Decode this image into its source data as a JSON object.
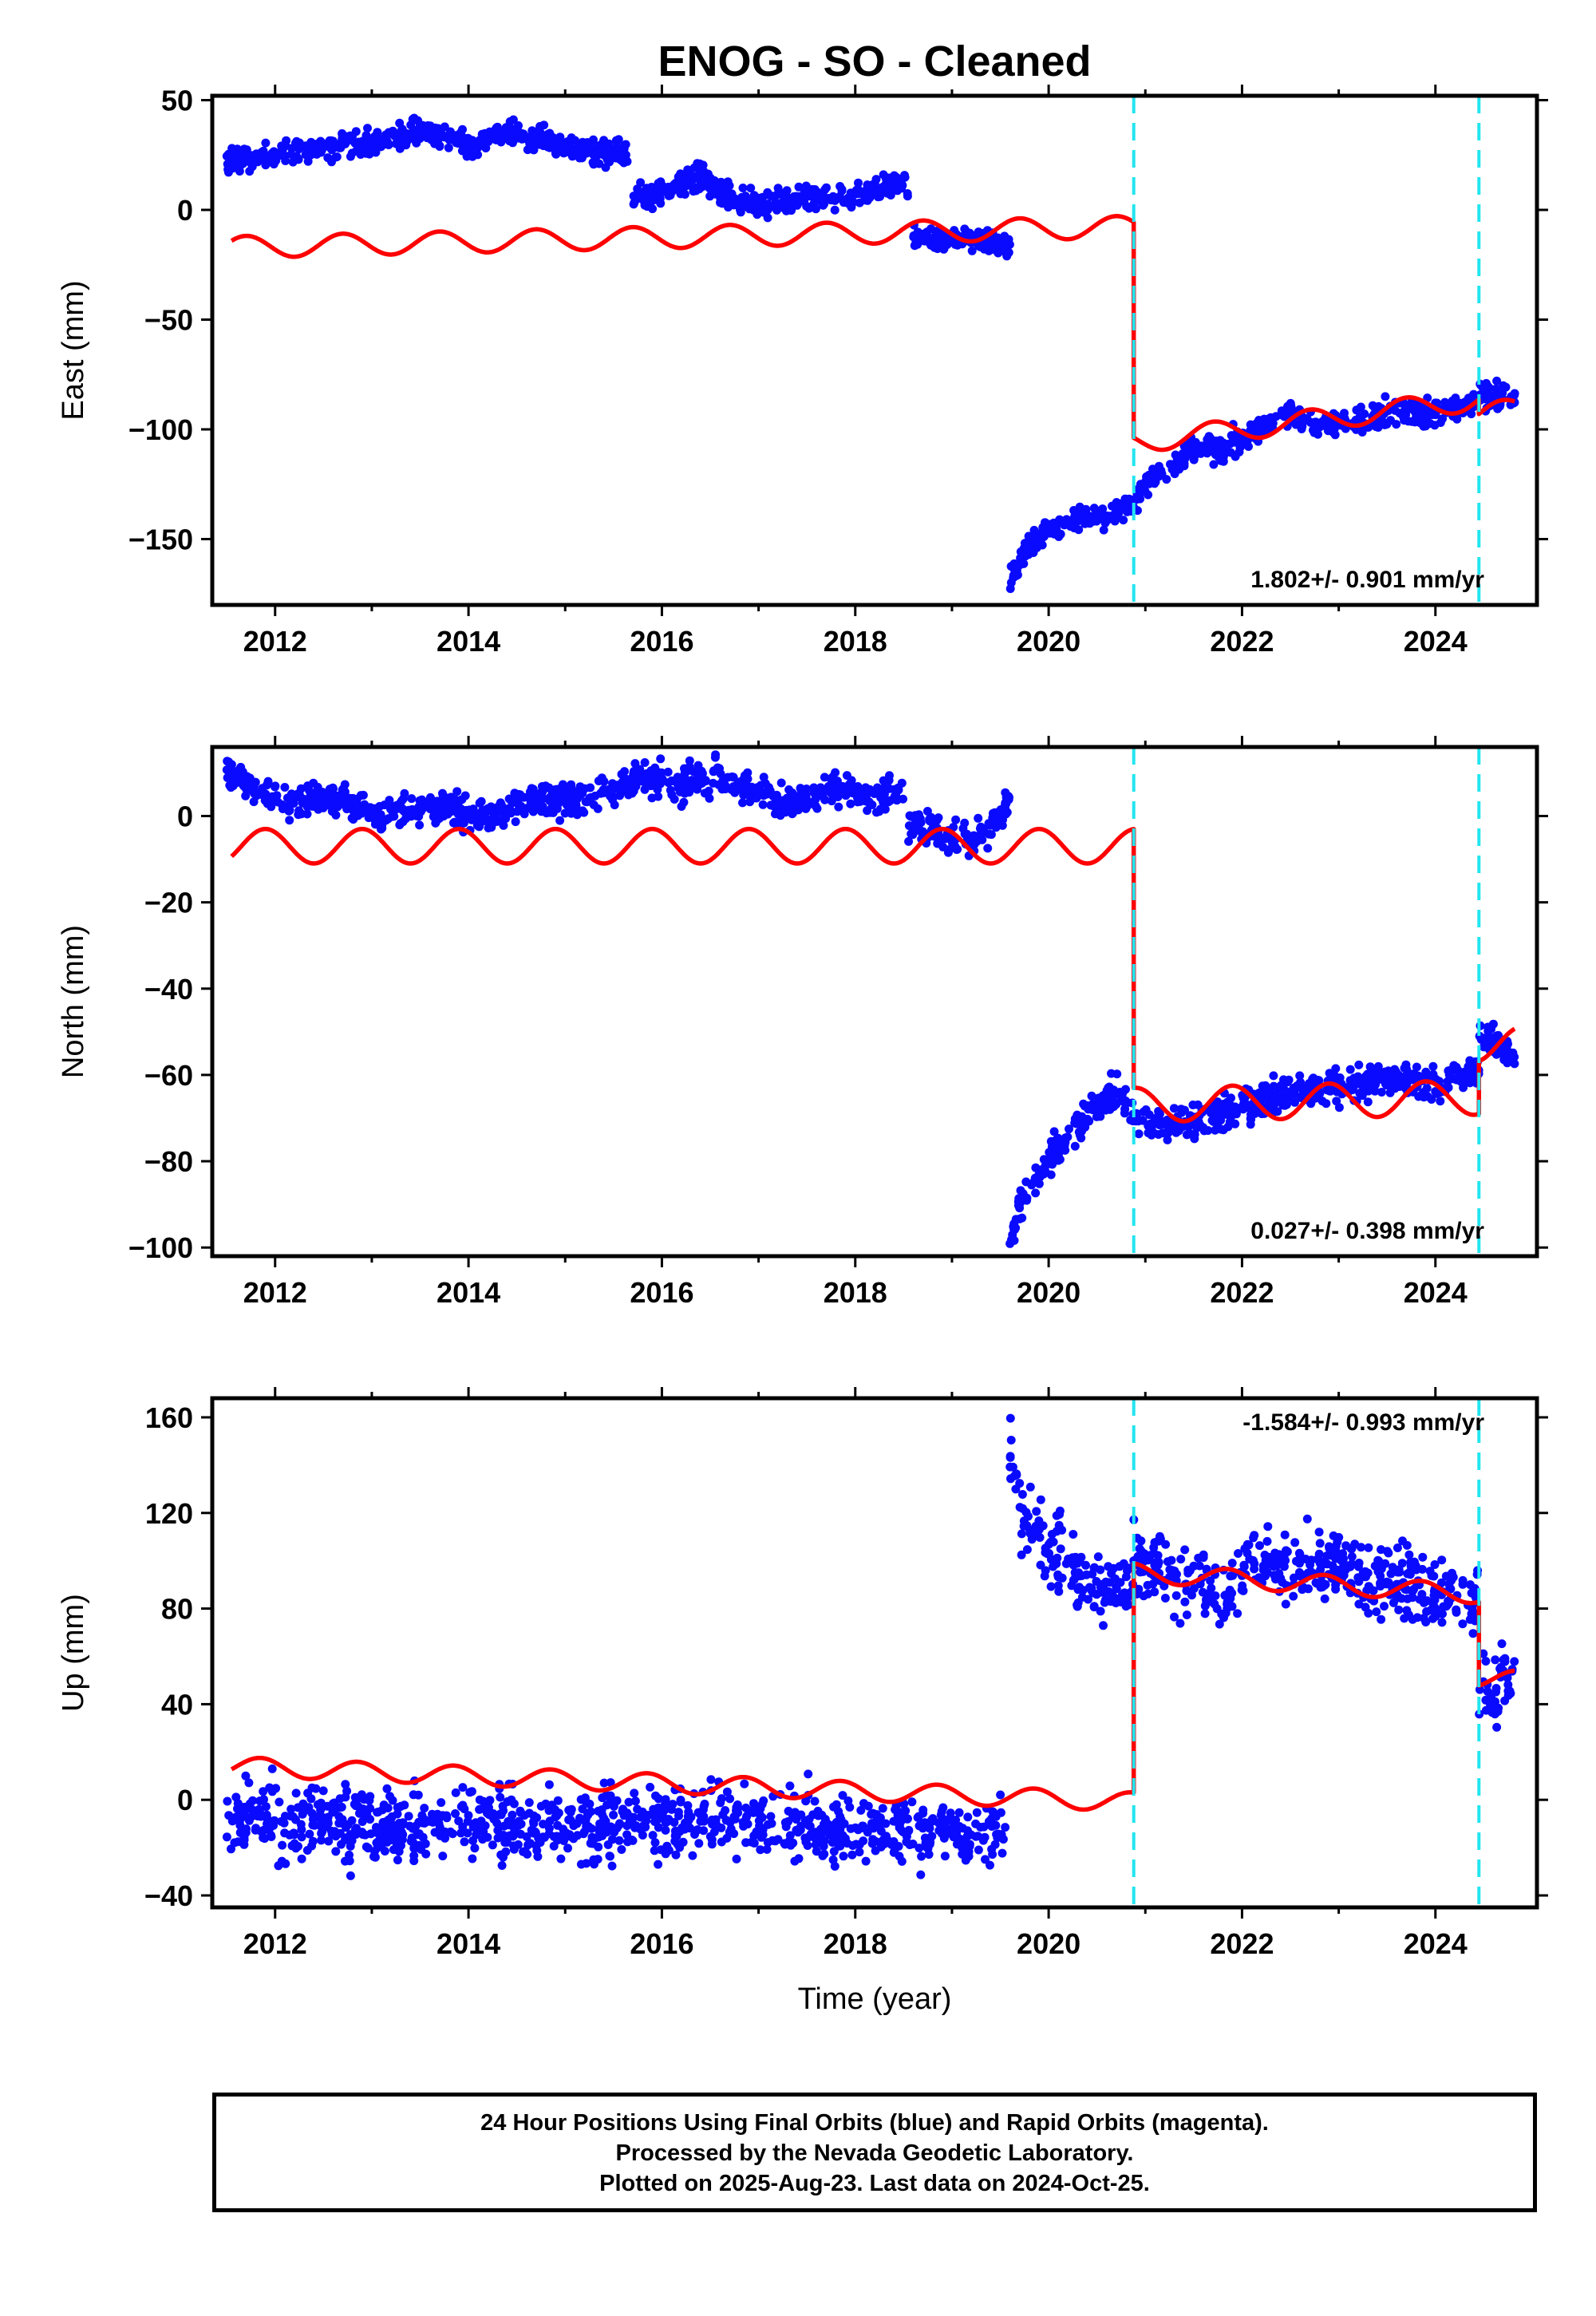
{
  "chart_data": {
    "type": "scatter",
    "title": "ENOG  - SO - Cleaned",
    "xlabel": "Time (year)",
    "xlim": [
      2011.35,
      2025.05
    ],
    "x_ticks": [
      2012,
      2014,
      2016,
      2018,
      2020,
      2022,
      2024
    ],
    "discontinuities": [
      2020.88,
      2024.45
    ],
    "colors": {
      "data": "#0a0aff",
      "model": "#ff0000",
      "steps": "#22e5f0"
    },
    "series": [
      {
        "name": "East",
        "ylabel": "East (mm)",
        "ylim": [
          -180,
          52
        ],
        "y_ticks": [
          50,
          0,
          -50,
          -100,
          -150
        ],
        "rate": "1.802+/- 0.901 mm/yr",
        "data_segments": [
          {
            "x": [
              2011.5,
              2012.0,
              2012.5,
              2013.0,
              2013.5,
              2014.0,
              2014.5,
              2015.0,
              2015.5,
              2015.65
            ],
            "y": [
              23,
              25,
              28,
              30,
              36,
              30,
              36,
              29,
              26,
              25
            ]
          },
          {
            "x": [
              2015.7,
              2016.0,
              2016.4,
              2016.8,
              2017.2,
              2017.6,
              2018.0,
              2018.4,
              2018.55
            ],
            "y": [
              5,
              7,
              15,
              3,
              3,
              6,
              7,
              12,
              10
            ]
          },
          {
            "x": [
              2018.6,
              2018.9,
              2019.2,
              2019.5,
              2019.6
            ],
            "y": [
              -12,
              -13,
              -13,
              -15,
              -18
            ]
          },
          {
            "x": [
              2019.6,
              2019.75,
              2020.0,
              2020.3,
              2020.6,
              2020.88
            ],
            "y": [
              -170,
              -155,
              -146,
              -140,
              -140,
              -133
            ]
          },
          {
            "x": [
              2020.88,
              2021.2,
              2021.5,
              2021.8,
              2022.1,
              2022.4,
              2022.8,
              2023.2,
              2023.6,
              2024.0,
              2024.45
            ],
            "y": [
              -132,
              -118,
              -110,
              -108,
              -102,
              -93,
              -97,
              -97,
              -91,
              -93,
              -88
            ]
          },
          {
            "x": [
              2024.45,
              2024.6,
              2024.82
            ],
            "y": [
              -83,
              -86,
              -85
            ]
          }
        ],
        "model": {
          "segments": [
            [
              2011.55,
              2020.88,
              -17,
              1.0
            ],
            [
              2020.88,
              2024.45,
              -106,
              5.5
            ],
            [
              2024.45,
              2024.82,
              -93,
              5.5
            ]
          ],
          "amplitude": 5,
          "phase": 0.55
        }
      },
      {
        "name": "North",
        "ylabel": "North (mm)",
        "ylim": [
          -102,
          16
        ],
        "y_ticks": [
          0,
          -20,
          -40,
          -60,
          -80,
          -100
        ],
        "rate": "0.027+/- 0.398 mm/yr",
        "data_segments": [
          {
            "x": [
              2011.5,
              2011.8,
              2012.2,
              2012.6,
              2013.0,
              2013.4,
              2013.8,
              2014.2,
              2014.6,
              2015.0,
              2015.4,
              2015.8,
              2016.2,
              2016.6,
              2017.0,
              2017.4,
              2017.8,
              2018.2,
              2018.5
            ],
            "y": [
              11,
              6,
              3,
              4,
              1,
              1,
              2,
              0,
              4,
              3,
              6,
              9,
              7,
              9,
              5,
              3,
              7,
              4,
              6
            ]
          },
          {
            "x": [
              2018.55,
              2018.8,
              2019.1,
              2019.4,
              2019.6
            ],
            "y": [
              -2,
              -4,
              -6,
              -3,
              5
            ]
          },
          {
            "x": [
              2019.6,
              2019.7,
              2019.9,
              2020.2,
              2020.5,
              2020.7,
              2020.88
            ],
            "y": [
              -99,
              -90,
              -83,
              -75,
              -67,
              -64,
              -69
            ]
          },
          {
            "x": [
              2020.88,
              2021.2,
              2021.6,
              2022.0,
              2022.4,
              2022.8,
              2023.2,
              2023.6,
              2024.0,
              2024.45
            ],
            "y": [
              -70,
              -72,
              -70,
              -68,
              -64,
              -63,
              -62,
              -61,
              -62,
              -59
            ]
          },
          {
            "x": [
              2024.45,
              2024.6,
              2024.82
            ],
            "y": [
              -50,
              -52,
              -56
            ]
          }
        ],
        "model": {
          "segments": [
            [
              2011.55,
              2020.88,
              -7,
              0
            ],
            [
              2020.88,
              2024.45,
              -67,
              0.5
            ],
            [
              2024.45,
              2024.82,
              -53,
              0.5
            ]
          ],
          "amplitude": 4,
          "phase": 0.35
        }
      },
      {
        "name": "Up",
        "ylabel": "Up (mm)",
        "ylim": [
          -45,
          168
        ],
        "y_ticks": [
          160,
          120,
          80,
          40,
          0,
          -40
        ],
        "rate": "-1.584+/- 0.993 mm/yr",
        "data_segments": [
          {
            "x": [
              2011.5,
              2012.0,
              2012.5,
              2013.0,
              2013.5,
              2014.0,
              2014.5,
              2015.0,
              2015.5,
              2016.0,
              2016.5,
              2017.0,
              2017.5,
              2018.0,
              2018.5,
              2019.0,
              2019.6
            ],
            "y": [
              -8,
              -9,
              -10,
              -12,
              -10,
              -8,
              -9,
              -10,
              -10,
              -8,
              -8,
              -9,
              -12,
              -14,
              -13,
              -14,
              -15
            ]
          },
          {
            "x": [
              2019.6,
              2019.7,
              2019.9,
              2020.1,
              2020.4,
              2020.7,
              2020.88
            ],
            "y": [
              150,
              122,
              108,
              100,
              92,
              88,
              85
            ]
          },
          {
            "x": [
              2020.88,
              2021.2,
              2021.5,
              2021.8,
              2022.1,
              2022.4,
              2022.8,
              2023.2,
              2023.6,
              2024.0,
              2024.45
            ],
            "y": [
              104,
              95,
              92,
              85,
              100,
              98,
              97,
              96,
              92,
              85,
              84
            ]
          },
          {
            "x": [
              2024.45,
              2024.6,
              2024.82
            ],
            "y": [
              48,
              46,
              52
            ]
          }
        ],
        "model": {
          "segments": [
            [
              2011.55,
              2020.88,
              14,
              -1.6
            ],
            [
              2020.88,
              2024.45,
              95,
              -2.5
            ],
            [
              2024.45,
              2024.82,
              51,
              -2.5
            ]
          ],
          "amplitude": 4,
          "phase": 0.4
        }
      }
    ]
  },
  "footer": {
    "line1": "24 Hour Positions Using Final Orbits (blue) and Rapid Orbits (magenta).",
    "line2": "Processed by the Nevada Geodetic Laboratory.",
    "line3": "Plotted on 2025-Aug-23. Last data on 2024-Oct-25."
  }
}
